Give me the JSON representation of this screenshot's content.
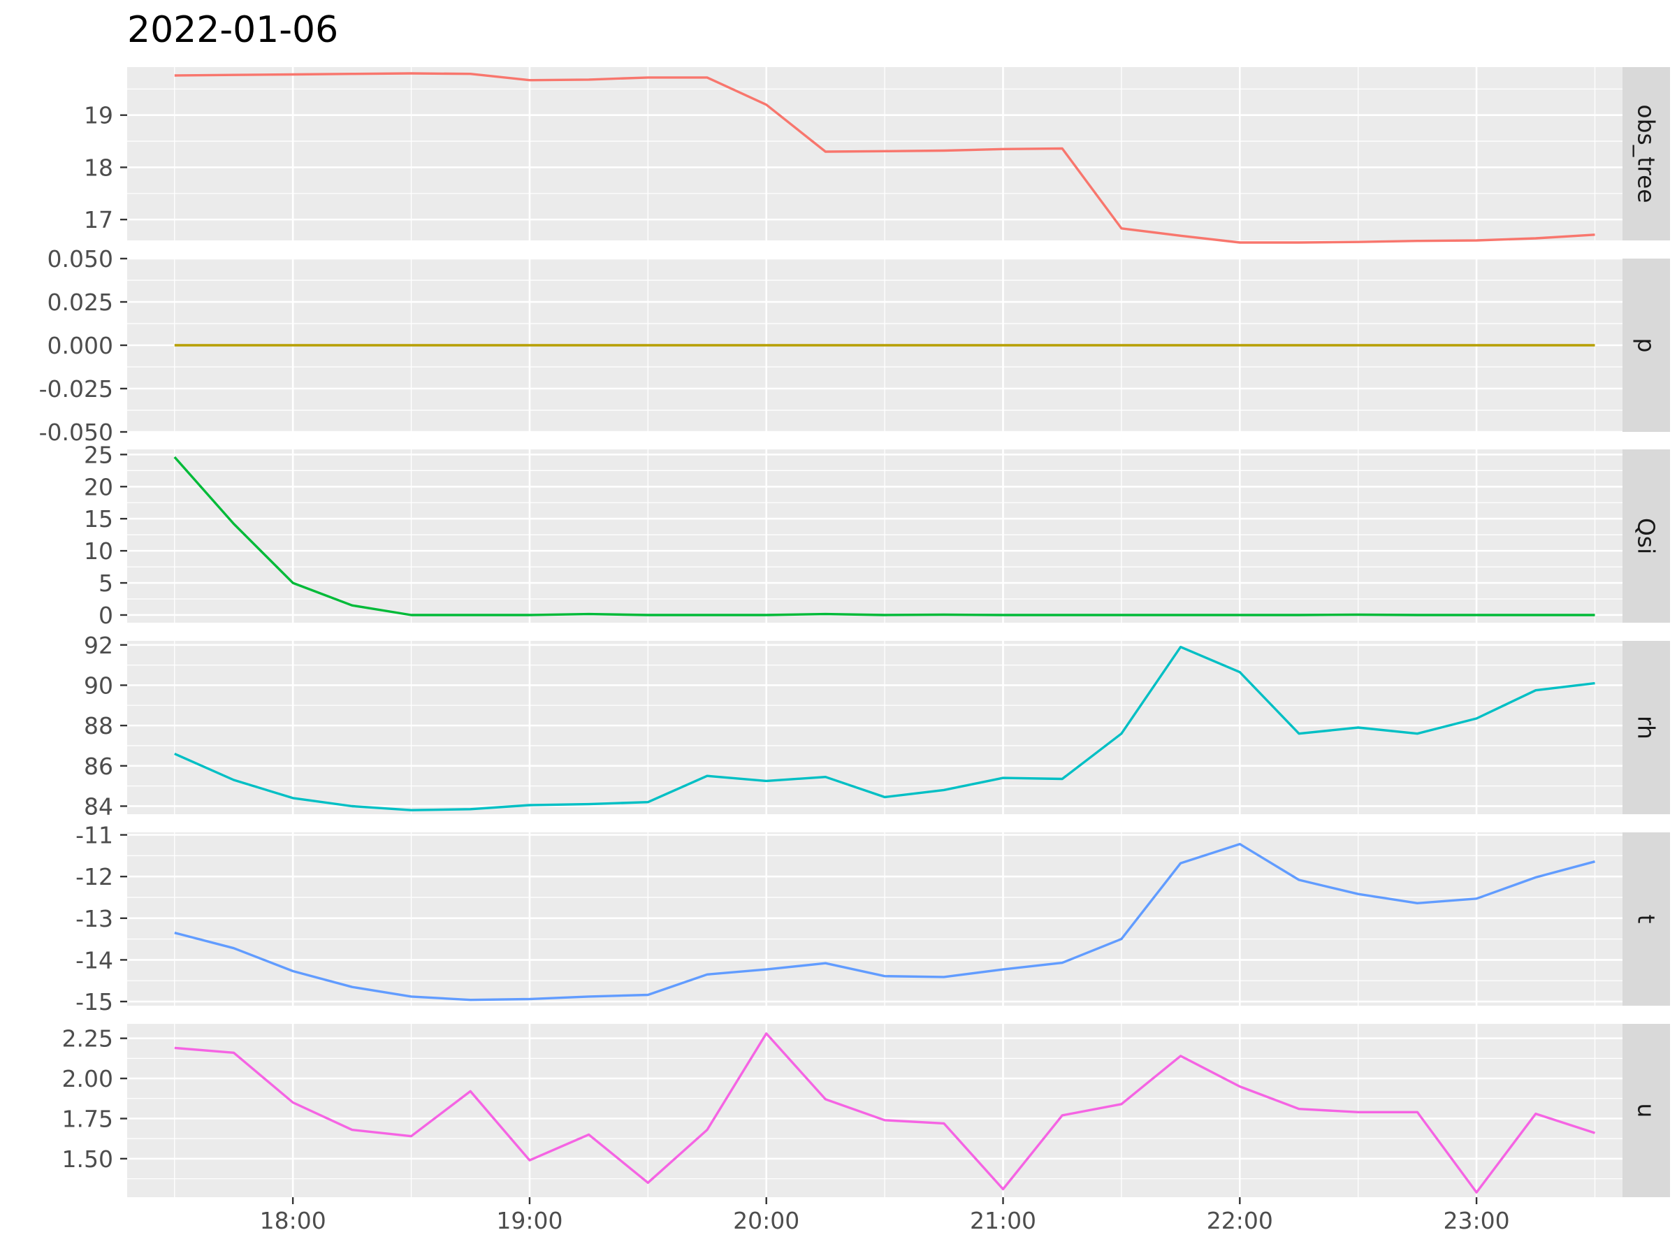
{
  "chart_data": {
    "type": "line",
    "title": "2022-01-06",
    "xlabel": "",
    "ylabel": "",
    "x_minutes": [
      1050,
      1065,
      1080,
      1095,
      1110,
      1125,
      1140,
      1155,
      1170,
      1185,
      1200,
      1215,
      1230,
      1245,
      1260,
      1275,
      1290,
      1305,
      1320,
      1335,
      1350,
      1365,
      1380,
      1395,
      1410
    ],
    "xlim": [
      1038,
      1417
    ],
    "x_ticks": [
      {
        "minutes": 1080,
        "label": "18:00"
      },
      {
        "minutes": 1140,
        "label": "19:00"
      },
      {
        "minutes": 1200,
        "label": "20:00"
      },
      {
        "minutes": 1260,
        "label": "21:00"
      },
      {
        "minutes": 1320,
        "label": "22:00"
      },
      {
        "minutes": 1380,
        "label": "23:00"
      }
    ],
    "panels": [
      {
        "strip": "obs_tree",
        "color": "#F8766D",
        "ylim": [
          16.6,
          19.92
        ],
        "y_ticks": [
          17,
          18,
          19
        ],
        "y_tick_labels": [
          "17",
          "18",
          "19"
        ],
        "values": [
          19.76,
          19.77,
          19.78,
          19.79,
          19.8,
          19.79,
          19.67,
          19.68,
          19.72,
          19.72,
          19.2,
          18.3,
          18.31,
          18.32,
          18.35,
          18.36,
          16.83,
          16.69,
          16.56,
          16.56,
          16.57,
          16.59,
          16.6,
          16.64,
          16.71
        ]
      },
      {
        "strip": "p",
        "color": "#B79F00",
        "ylim": [
          -0.05,
          0.05
        ],
        "y_ticks": [
          -0.05,
          -0.025,
          0,
          0.025,
          0.05
        ],
        "y_tick_labels": [
          "-0.050",
          "-0.025",
          "0.000",
          "0.025",
          "0.050"
        ],
        "values": [
          0,
          0,
          0,
          0,
          0,
          0,
          0,
          0,
          0,
          0,
          0,
          0,
          0,
          0,
          0,
          0,
          0,
          0,
          0,
          0,
          0,
          0,
          0,
          0,
          0
        ]
      },
      {
        "strip": "Qsi",
        "color": "#00BA38",
        "ylim": [
          -1.2,
          25.8
        ],
        "y_ticks": [
          0,
          5,
          10,
          15,
          20,
          25
        ],
        "y_tick_labels": [
          "0",
          "5",
          "10",
          "15",
          "20",
          "25"
        ],
        "values": [
          24.6,
          14.2,
          5.0,
          1.5,
          0.0,
          0.0,
          0.0,
          0.15,
          0.0,
          0.0,
          0.0,
          0.15,
          0.0,
          0.05,
          0.0,
          0.0,
          0.0,
          0.0,
          0.0,
          0.0,
          0.05,
          0.0,
          0.0,
          0.0,
          0.0
        ]
      },
      {
        "strip": "rh",
        "color": "#00BFC4",
        "ylim": [
          83.6,
          92.2
        ],
        "y_ticks": [
          84,
          86,
          88,
          90,
          92
        ],
        "y_tick_labels": [
          "84",
          "86",
          "88",
          "90",
          "92"
        ],
        "values": [
          86.6,
          85.3,
          84.4,
          84.0,
          83.8,
          83.85,
          84.05,
          84.1,
          84.2,
          85.5,
          85.25,
          85.45,
          84.45,
          84.8,
          85.4,
          85.35,
          87.6,
          91.9,
          90.65,
          87.6,
          87.9,
          87.6,
          88.35,
          89.75,
          90.1
        ]
      },
      {
        "strip": "t",
        "color": "#619CFF",
        "ylim": [
          -15.1,
          -10.94
        ],
        "y_ticks": [
          -15,
          -14,
          -13,
          -12,
          -11
        ],
        "y_tick_labels": [
          "-15",
          "-14",
          "-13",
          "-12",
          "-11"
        ],
        "values": [
          -13.35,
          -13.72,
          -14.27,
          -14.65,
          -14.88,
          -14.96,
          -14.94,
          -14.88,
          -14.84,
          -14.35,
          -14.23,
          -14.08,
          -14.39,
          -14.41,
          -14.23,
          -14.07,
          -13.5,
          -11.68,
          -11.22,
          -12.08,
          -12.42,
          -12.64,
          -12.53,
          -12.02,
          -11.64
        ]
      },
      {
        "strip": "u",
        "color": "#F564E3",
        "ylim": [
          1.26,
          2.34
        ],
        "y_ticks": [
          1.5,
          1.75,
          2.0,
          2.25
        ],
        "y_tick_labels": [
          "1.50",
          "1.75",
          "2.00",
          "2.25"
        ],
        "values": [
          2.19,
          2.16,
          1.85,
          1.68,
          1.64,
          1.92,
          1.49,
          1.65,
          1.35,
          1.68,
          2.28,
          1.87,
          1.74,
          1.72,
          1.31,
          1.77,
          1.84,
          2.14,
          1.95,
          1.81,
          1.79,
          1.79,
          1.29,
          1.78,
          1.66
        ]
      }
    ]
  },
  "colors": {
    "panel_background": "#ebebeb",
    "strip_background": "#d9d9d9",
    "grid": "#ffffff",
    "axis_text": "#4d4d4d",
    "strip_text": "#1a1a1a"
  }
}
